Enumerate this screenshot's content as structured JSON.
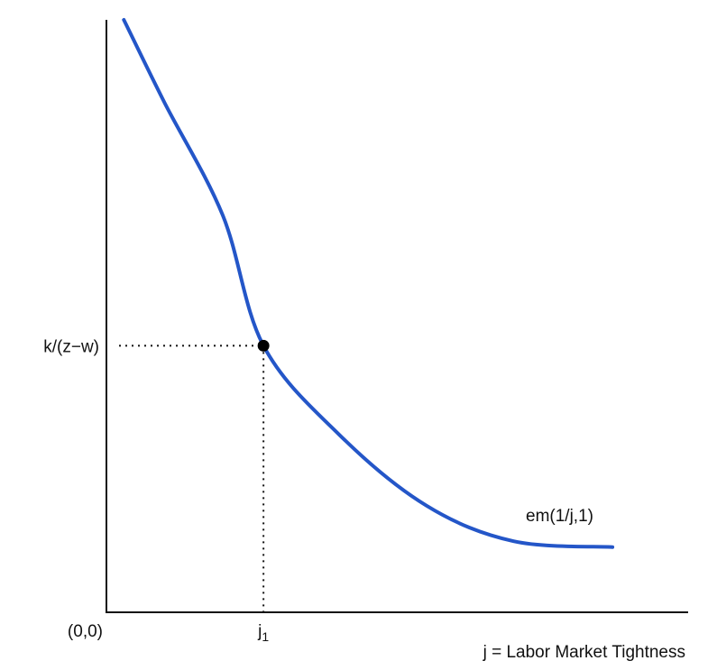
{
  "chart_data": {
    "type": "line",
    "title": "",
    "xlabel": "j = Labor Market Tightness",
    "ylabel": "",
    "origin_label": "(0,0)",
    "x_tick_labels": [
      {
        "base": "j",
        "sub": "1"
      }
    ],
    "y_tick_labels": [
      "k/(z−w)"
    ],
    "series": [
      {
        "name": "em(1/j,1)",
        "color": "#2456c8",
        "shape": "decreasing convex",
        "points": [
          {
            "x": 0.03,
            "y": 1.0
          },
          {
            "x": 0.1,
            "y": 0.86
          },
          {
            "x": 0.2,
            "y": 0.67
          },
          {
            "x": 0.27,
            "y": 0.45
          },
          {
            "x": 0.4,
            "y": 0.3
          },
          {
            "x": 0.55,
            "y": 0.18
          },
          {
            "x": 0.7,
            "y": 0.12
          },
          {
            "x": 0.87,
            "y": 0.11
          }
        ]
      }
    ],
    "marked_point": {
      "x": 0.27,
      "y": 0.45,
      "color": "#000000"
    },
    "xlim": [
      0,
      1
    ],
    "ylim": [
      0,
      1
    ],
    "grid": false,
    "guide_lines": "dotted"
  }
}
